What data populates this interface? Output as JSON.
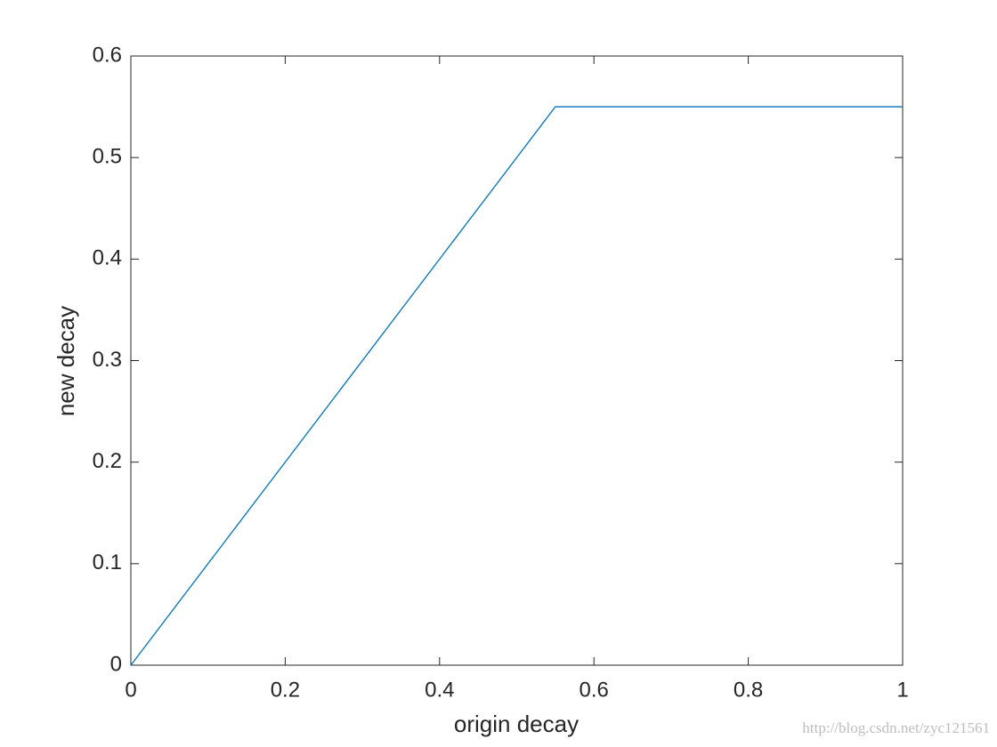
{
  "chart_data": {
    "type": "line",
    "x": [
      0,
      0.55,
      1
    ],
    "values": [
      0,
      0.55,
      0.55
    ],
    "color": "#0072bd",
    "xlabel": "origin decay",
    "ylabel": "new decay",
    "xlim": [
      0,
      1
    ],
    "xticks": [
      0,
      0.2,
      0.4,
      0.6,
      0.8,
      1
    ],
    "ylim": [
      0,
      0.6
    ],
    "yticks": [
      0,
      0.1,
      0.2,
      0.3,
      0.4,
      0.5,
      0.6
    ],
    "grid": false,
    "watermark": "http://blog.csdn.net/zyc121561"
  }
}
